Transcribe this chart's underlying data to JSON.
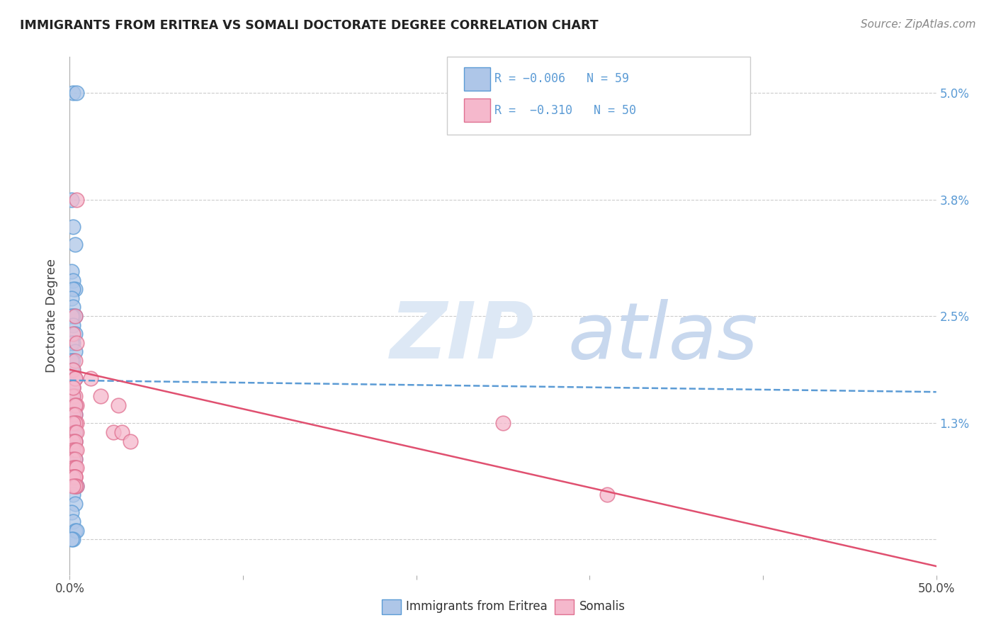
{
  "title": "IMMIGRANTS FROM ERITREA VS SOMALI DOCTORATE DEGREE CORRELATION CHART",
  "source": "Source: ZipAtlas.com",
  "ylabel": "Doctorate Degree",
  "color_eritrea_fill": "#aec6e8",
  "color_eritrea_edge": "#5b9bd5",
  "color_somali_fill": "#f5b8cc",
  "color_somali_edge": "#e07090",
  "color_eritrea_line": "#5b9bd5",
  "color_somali_line": "#e05070",
  "grid_color": "#cccccc",
  "xmin": 0.0,
  "xmax": 0.5,
  "ymin": -0.004,
  "ymax": 0.054,
  "ytick_vals": [
    0.0,
    0.013,
    0.025,
    0.038,
    0.05
  ],
  "ytick_labels": [
    "",
    "1.3%",
    "2.5%",
    "3.8%",
    "5.0%"
  ],
  "xtick_vals": [
    0.0,
    0.1,
    0.2,
    0.3,
    0.4,
    0.5
  ],
  "xtick_labels": [
    "0.0%",
    "",
    "",
    "",
    "",
    "50.0%"
  ],
  "legend_line1": "R = −0.006   N = 59",
  "legend_line2": "R =  −0.310   N = 50",
  "eritrea_trend_x": [
    0.0,
    0.5
  ],
  "eritrea_trend_y": [
    0.0178,
    0.0165
  ],
  "somali_trend_x": [
    0.0,
    0.5
  ],
  "somali_trend_y": [
    0.019,
    -0.003
  ],
  "eritrea_points_x": [
    0.002,
    0.004,
    0.001,
    0.002,
    0.003,
    0.001,
    0.002,
    0.003,
    0.002,
    0.001,
    0.002,
    0.003,
    0.002,
    0.001,
    0.002,
    0.003,
    0.002,
    0.001,
    0.003,
    0.002,
    0.001,
    0.002,
    0.001,
    0.003,
    0.002,
    0.001,
    0.002,
    0.001,
    0.002,
    0.003,
    0.002,
    0.001,
    0.002,
    0.002,
    0.003,
    0.002,
    0.001,
    0.002,
    0.002,
    0.003,
    0.002,
    0.001,
    0.003,
    0.002,
    0.001,
    0.003,
    0.002,
    0.002,
    0.001,
    0.003,
    0.004,
    0.002,
    0.003,
    0.001,
    0.002,
    0.003,
    0.004,
    0.002,
    0.001
  ],
  "eritrea_points_y": [
    0.05,
    0.05,
    0.038,
    0.035,
    0.033,
    0.03,
    0.029,
    0.028,
    0.028,
    0.027,
    0.026,
    0.025,
    0.025,
    0.025,
    0.024,
    0.023,
    0.022,
    0.022,
    0.021,
    0.02,
    0.02,
    0.019,
    0.019,
    0.018,
    0.017,
    0.017,
    0.016,
    0.016,
    0.015,
    0.015,
    0.015,
    0.015,
    0.014,
    0.014,
    0.014,
    0.013,
    0.013,
    0.013,
    0.012,
    0.012,
    0.012,
    0.011,
    0.011,
    0.01,
    0.01,
    0.009,
    0.009,
    0.008,
    0.007,
    0.006,
    0.006,
    0.005,
    0.004,
    0.003,
    0.002,
    0.001,
    0.001,
    0.0,
    0.0
  ],
  "somali_points_x": [
    0.004,
    0.003,
    0.002,
    0.004,
    0.003,
    0.002,
    0.003,
    0.002,
    0.003,
    0.002,
    0.003,
    0.004,
    0.003,
    0.002,
    0.003,
    0.004,
    0.003,
    0.002,
    0.003,
    0.004,
    0.003,
    0.002,
    0.003,
    0.002,
    0.003,
    0.004,
    0.002,
    0.003,
    0.003,
    0.002,
    0.003,
    0.004,
    0.003,
    0.002,
    0.003,
    0.002,
    0.003,
    0.004,
    0.003,
    0.002,
    0.003,
    0.002,
    0.012,
    0.018,
    0.025,
    0.028,
    0.03,
    0.035,
    0.25,
    0.31
  ],
  "somali_points_y": [
    0.038,
    0.025,
    0.023,
    0.022,
    0.02,
    0.019,
    0.018,
    0.017,
    0.016,
    0.016,
    0.015,
    0.015,
    0.015,
    0.014,
    0.014,
    0.013,
    0.013,
    0.013,
    0.012,
    0.012,
    0.011,
    0.011,
    0.011,
    0.01,
    0.01,
    0.01,
    0.009,
    0.009,
    0.008,
    0.008,
    0.008,
    0.008,
    0.007,
    0.007,
    0.007,
    0.007,
    0.007,
    0.006,
    0.006,
    0.006,
    0.018,
    0.017,
    0.018,
    0.016,
    0.012,
    0.015,
    0.012,
    0.011,
    0.013,
    0.005
  ]
}
